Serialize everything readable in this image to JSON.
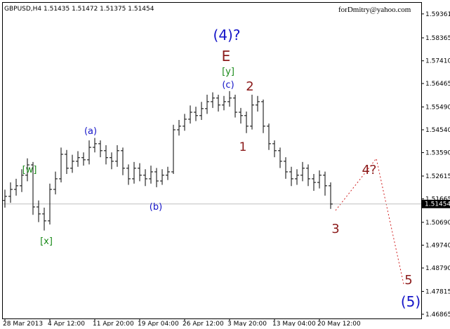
{
  "chart_data": {
    "type": "ohlc",
    "title": "GBPUSD,H4  1.51435 1.51472 1.51375 1.51454",
    "watermark": "forDmitry@yahoo.com",
    "color": "#000000",
    "categories": [
      "28 Mar 2013",
      null,
      null,
      null,
      null,
      null,
      null,
      null,
      "4 Apr 12:00",
      null,
      null,
      null,
      null,
      null,
      null,
      null,
      "11 Apr 20:00",
      null,
      null,
      null,
      null,
      null,
      null,
      null,
      "19 Apr 04:00",
      null,
      null,
      null,
      null,
      null,
      null,
      null,
      "26 Apr 12:00",
      null,
      null,
      null,
      null,
      null,
      null,
      null,
      "3 May 20:00",
      null,
      null,
      null,
      null,
      null,
      null,
      null,
      "13 May 04:00",
      null,
      null,
      null,
      null,
      null,
      null,
      null,
      "20 May 12:00",
      null,
      null
    ],
    "open": [
      1.516,
      1.5177,
      1.5206,
      1.5221,
      1.5265,
      1.5308,
      1.5133,
      1.5104,
      1.5075,
      1.5206,
      1.525,
      1.5352,
      1.5294,
      1.5323,
      1.5338,
      1.5329,
      1.5381,
      1.5396,
      1.5367,
      1.5338,
      1.5323,
      1.5367,
      1.5294,
      1.525,
      1.5294,
      1.5265,
      1.525,
      1.5279,
      1.5241,
      1.5265,
      1.5279,
      1.5454,
      1.5469,
      1.5498,
      1.5527,
      1.5513,
      1.5542,
      1.5571,
      1.5586,
      1.5557,
      1.5571,
      1.5586,
      1.5527,
      1.5513,
      1.5469,
      1.5557,
      1.5571,
      1.5469,
      1.5396,
      1.5367,
      1.5323,
      1.5279,
      1.525,
      1.5265,
      1.5294,
      1.525,
      1.5235,
      1.5265,
      1.5221
    ],
    "high": [
      1.5205,
      1.5235,
      1.525,
      1.529,
      1.5335,
      1.532,
      1.516,
      1.513,
      1.523,
      1.528,
      1.538,
      1.537,
      1.535,
      1.5365,
      1.536,
      1.541,
      1.542,
      1.541,
      1.539,
      1.536,
      1.539,
      1.538,
      1.531,
      1.532,
      1.5315,
      1.529,
      1.5305,
      1.5295,
      1.529,
      1.53,
      1.5475,
      1.5495,
      1.552,
      1.5555,
      1.555,
      1.557,
      1.56,
      1.561,
      1.56,
      1.5595,
      1.5615,
      1.56,
      1.5545,
      1.553,
      1.56,
      1.5595,
      1.558,
      1.548,
      1.541,
      1.538,
      1.534,
      1.53,
      1.529,
      1.532,
      1.531,
      1.527,
      1.5285,
      1.528,
      1.5235
    ],
    "low": [
      1.513,
      1.515,
      1.518,
      1.5195,
      1.524,
      1.51,
      1.507,
      1.5035,
      1.506,
      1.5185,
      1.5235,
      1.527,
      1.5275,
      1.53,
      1.5305,
      1.531,
      1.536,
      1.534,
      1.531,
      1.529,
      1.53,
      1.5265,
      1.5225,
      1.523,
      1.524,
      1.522,
      1.523,
      1.5215,
      1.5225,
      1.5245,
      1.527,
      1.543,
      1.545,
      1.548,
      1.549,
      1.5495,
      1.552,
      1.5545,
      1.553,
      1.5535,
      1.555,
      1.5505,
      1.548,
      1.544,
      1.5455,
      1.553,
      1.544,
      1.537,
      1.534,
      1.5295,
      1.525,
      1.522,
      1.5225,
      1.524,
      1.522,
      1.52,
      1.521,
      1.518,
      1.5125
    ],
    "close": [
      1.5177,
      1.5206,
      1.5221,
      1.5265,
      1.5308,
      1.5133,
      1.5104,
      1.5075,
      1.5206,
      1.525,
      1.5352,
      1.5294,
      1.5323,
      1.5338,
      1.5329,
      1.5381,
      1.5396,
      1.5367,
      1.5338,
      1.5323,
      1.5367,
      1.5294,
      1.525,
      1.5294,
      1.5265,
      1.525,
      1.5279,
      1.5241,
      1.5265,
      1.5279,
      1.5454,
      1.5469,
      1.5498,
      1.5527,
      1.5513,
      1.5542,
      1.5571,
      1.5586,
      1.5557,
      1.5571,
      1.5586,
      1.5527,
      1.5513,
      1.5469,
      1.5557,
      1.5571,
      1.5469,
      1.5396,
      1.5367,
      1.5323,
      1.5279,
      1.525,
      1.5265,
      1.5294,
      1.525,
      1.5235,
      1.5265,
      1.5221,
      1.5145
    ],
    "last_price": 1.51454,
    "ylim": [
      1.4666,
      1.5994
    ],
    "yticks": [
      1.59361,
      1.58365,
      {
        "value": 1.5741,
        "label": "1.57410"
      },
      1.56465,
      {
        "value": 1.5549,
        "label": "1.55490"
      },
      {
        "value": 1.5454,
        "label": "1.54540"
      },
      {
        "value": 1.5359,
        "label": "1.53590"
      },
      1.52615,
      1.51665,
      {
        "value": 1.5069,
        "label": "1.50690"
      },
      {
        "value": 1.4974,
        "label": "1.49740"
      },
      {
        "value": 1.4879,
        "label": "1.48790"
      },
      1.47815,
      1.46865
    ],
    "annotations": [
      {
        "text": "(4)?",
        "color": "#1515c8"
      },
      {
        "text": "E",
        "color": "#8b1a1a"
      },
      {
        "text": "[y]",
        "color": "#1a8a1a"
      },
      {
        "text": "(c)",
        "color": "#1515c8"
      },
      {
        "text": "2",
        "color": "#8b1a1a"
      },
      {
        "text": "1",
        "color": "#8b1a1a"
      },
      {
        "text": "(a)",
        "color": "#1515c8"
      },
      {
        "text": "(b)",
        "color": "#1515c8"
      },
      {
        "text": "[w]",
        "color": "#1a8a1a"
      },
      {
        "text": "[x]",
        "color": "#1a8a1a"
      },
      {
        "text": "3",
        "color": "#8b1a1a"
      },
      {
        "text": "4?",
        "color": "#8b1a1a"
      },
      {
        "text": "5",
        "color": "#8b1a1a"
      },
      {
        "text": "(5)",
        "color": "#1515c8"
      }
    ]
  }
}
